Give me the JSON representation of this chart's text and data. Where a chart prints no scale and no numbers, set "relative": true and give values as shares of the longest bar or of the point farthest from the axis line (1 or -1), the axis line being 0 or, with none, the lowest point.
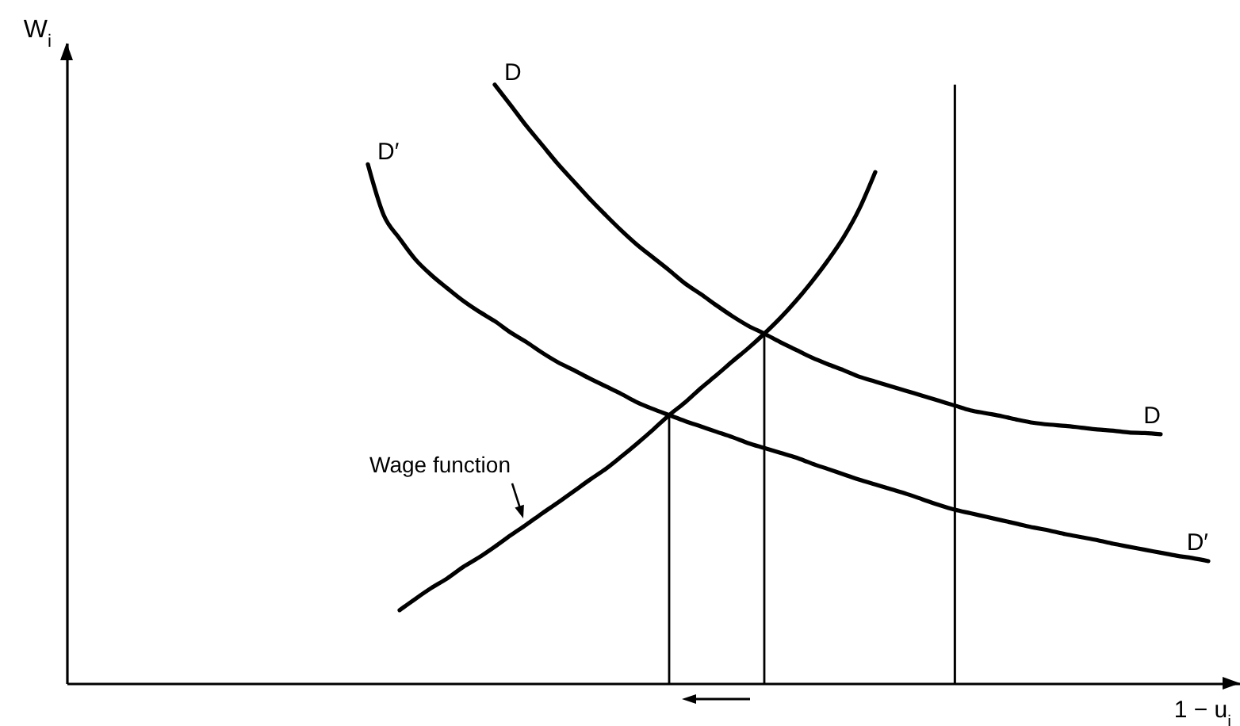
{
  "chart_data": {
    "type": "line",
    "relative": true,
    "xlabel": "1 − u$_{i}$",
    "ylabel": "W$_{i}$",
    "line_style": "solid",
    "categories": [
      null,
      null,
      null,
      null,
      null,
      null,
      null,
      null,
      null,
      null,
      null,
      null,
      null,
      null,
      null,
      null,
      null,
      null,
      null,
      null,
      null,
      null,
      null,
      null,
      null,
      null,
      null,
      null,
      null,
      null,
      null,
      null,
      null,
      null,
      null,
      null,
      null,
      null,
      null,
      null,
      null,
      null,
      null,
      null,
      null,
      null,
      null,
      null,
      null,
      null,
      null,
      null,
      null,
      null,
      null,
      null,
      null,
      null,
      null,
      null,
      null,
      null,
      null,
      null,
      null,
      null,
      null,
      null,
      null,
      null,
      null,
      null,
      null,
      null,
      null
    ],
    "series": [
      {
        "name": "D",
        "color": "#000000",
        "values": [
          null,
          null,
          null,
          null,
          null,
          null,
          null,
          null,
          null,
          null,
          null,
          null,
          null,
          null,
          null,
          null,
          null,
          null,
          null,
          null,
          null,
          null,
          null,
          null,
          null,
          null,
          null,
          1,
          0.966,
          0.931,
          0.899,
          0.867,
          0.838,
          0.809,
          0.782,
          0.756,
          0.732,
          0.711,
          0.69,
          0.668,
          0.65,
          0.631,
          0.613,
          0.597,
          0.584,
          0.57,
          0.557,
          0.544,
          0.533,
          0.523,
          0.512,
          0.504,
          0.496,
          0.488,
          0.48,
          0.472,
          0.464,
          0.456,
          0.451,
          0.446,
          0.44,
          0.435,
          0.432,
          0.43,
          0.427,
          0.424,
          0.422,
          0.419,
          0.418,
          0.416,
          null,
          null,
          null,
          null,
          null
        ]
      },
      {
        "name": "D′",
        "color": "#000000",
        "values": [
          null,
          null,
          null,
          null,
          null,
          null,
          null,
          null,
          null,
          null,
          null,
          null,
          null,
          null,
          null,
          null,
          null,
          null,
          null,
          0.867,
          0.782,
          0.743,
          0.708,
          0.682,
          0.66,
          0.639,
          0.621,
          0.605,
          0.586,
          0.57,
          0.552,
          0.536,
          0.523,
          0.509,
          0.496,
          0.483,
          0.469,
          0.458,
          0.448,
          0.438,
          0.429,
          0.42,
          0.411,
          0.401,
          0.393,
          0.385,
          0.377,
          0.367,
          0.358,
          0.349,
          0.34,
          0.332,
          0.324,
          0.316,
          0.307,
          0.298,
          0.29,
          0.284,
          0.278,
          0.272,
          0.266,
          0.26,
          0.255,
          0.249,
          0.244,
          0.239,
          0.233,
          0.228,
          0.223,
          0.218,
          0.213,
          0.209,
          0.204,
          null,
          null
        ]
      },
      {
        "name": "Wage function",
        "color": "#000000",
        "values": [
          null,
          null,
          null,
          null,
          null,
          null,
          null,
          null,
          null,
          null,
          null,
          null,
          null,
          null,
          null,
          null,
          null,
          null,
          null,
          null,
          null,
          0.122,
          0.141,
          0.159,
          0.175,
          0.194,
          0.21,
          0.228,
          0.247,
          0.265,
          0.284,
          0.302,
          0.321,
          0.34,
          0.358,
          0.379,
          0.401,
          0.424,
          0.448,
          0.469,
          0.493,
          0.515,
          0.538,
          0.56,
          0.584,
          0.61,
          0.639,
          0.671,
          0.706,
          0.745,
          0.793,
          0.854,
          null,
          null,
          null,
          null,
          null,
          null,
          null,
          null,
          null,
          null,
          null,
          null,
          null,
          null,
          null,
          null,
          null,
          null,
          null,
          null,
          null,
          null,
          null
        ]
      }
    ]
  }
}
